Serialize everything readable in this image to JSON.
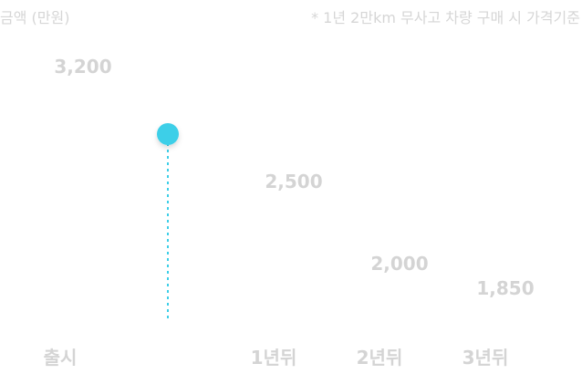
{
  "header": {
    "unit_label": "금액 (만원)",
    "note": "* 1년 2만km 무사고 차량 구매 시 가격기준"
  },
  "colors": {
    "accent": "#3ecfe8",
    "label": "#d4d4d4"
  },
  "chart_data": {
    "type": "line",
    "title": "",
    "xlabel": "",
    "ylabel": "금액 (만원)",
    "categories": [
      "출시",
      "1년뒤",
      "2년뒤",
      "3년뒤"
    ],
    "values": [
      3200,
      2500,
      2000,
      1850
    ],
    "value_labels": [
      "3,200",
      "2,500",
      "2,000",
      "1,850"
    ],
    "highlight": {
      "value": 2850,
      "shape": "dot-with-dashed-drop-line"
    },
    "ylim": [
      1500,
      3500
    ],
    "grid": false,
    "legend": "none"
  }
}
